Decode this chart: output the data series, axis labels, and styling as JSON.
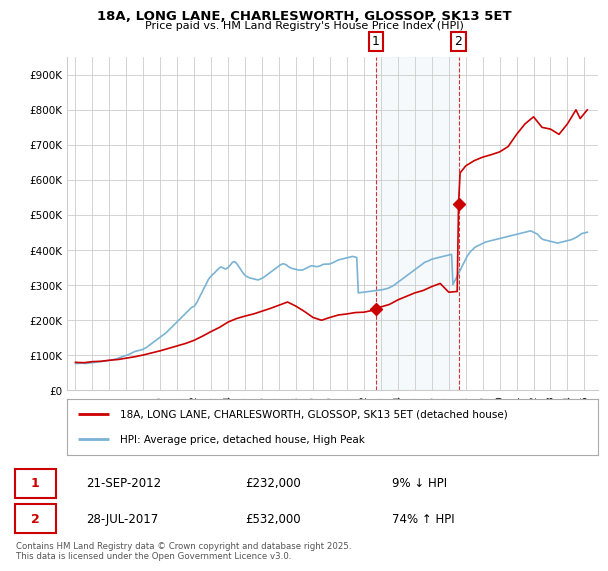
{
  "title": "18A, LONG LANE, CHARLESWORTH, GLOSSOP, SK13 5ET",
  "subtitle": "Price paid vs. HM Land Registry's House Price Index (HPI)",
  "background_color": "#ffffff",
  "plot_bg_color": "#ffffff",
  "grid_color": "#cccccc",
  "sale1_date": "21-SEP-2012",
  "sale1_price": 232000,
  "sale1_label": "9% ↓ HPI",
  "sale1_year": 2012.72,
  "sale2_date": "28-JUL-2017",
  "sale2_price": 532000,
  "sale2_label": "74% ↑ HPI",
  "sale2_year": 2017.58,
  "hpi_line_color": "#7ab3d4",
  "price_line_color": "#cc0000",
  "annotation_box_color": "#cc0000",
  "highlight_bg": "#d8e8f5",
  "legend_label1": "18A, LONG LANE, CHARLESWORTH, GLOSSOP, SK13 5ET (detached house)",
  "legend_label2": "HPI: Average price, detached house, High Peak",
  "footer": "Contains HM Land Registry data © Crown copyright and database right 2025.\nThis data is licensed under the Open Government Licence v3.0.",
  "ylim": [
    0,
    950000
  ],
  "yticks": [
    0,
    100000,
    200000,
    300000,
    400000,
    500000,
    600000,
    700000,
    800000,
    900000
  ],
  "ytick_labels": [
    "£0",
    "£100K",
    "£200K",
    "£300K",
    "£400K",
    "£500K",
    "£600K",
    "£700K",
    "£800K",
    "£900K"
  ],
  "xlim_start": 1994.5,
  "xlim_end": 2025.8,
  "hpi_years": [
    1995.0,
    1995.08,
    1995.17,
    1995.25,
    1995.33,
    1995.42,
    1995.5,
    1995.58,
    1995.67,
    1995.75,
    1995.83,
    1995.92,
    1996.0,
    1996.08,
    1996.17,
    1996.25,
    1996.33,
    1996.42,
    1996.5,
    1996.58,
    1996.67,
    1996.75,
    1996.83,
    1996.92,
    1997.0,
    1997.08,
    1997.17,
    1997.25,
    1997.33,
    1997.42,
    1997.5,
    1997.58,
    1997.67,
    1997.75,
    1997.83,
    1997.92,
    1998.0,
    1998.08,
    1998.17,
    1998.25,
    1998.33,
    1998.42,
    1998.5,
    1998.58,
    1998.67,
    1998.75,
    1998.83,
    1998.92,
    1999.0,
    1999.08,
    1999.17,
    1999.25,
    1999.33,
    1999.42,
    1999.5,
    1999.58,
    1999.67,
    1999.75,
    1999.83,
    1999.92,
    2000.0,
    2000.08,
    2000.17,
    2000.25,
    2000.33,
    2000.42,
    2000.5,
    2000.58,
    2000.67,
    2000.75,
    2000.83,
    2000.92,
    2001.0,
    2001.08,
    2001.17,
    2001.25,
    2001.33,
    2001.42,
    2001.5,
    2001.58,
    2001.67,
    2001.75,
    2001.83,
    2001.92,
    2002.0,
    2002.08,
    2002.17,
    2002.25,
    2002.33,
    2002.42,
    2002.5,
    2002.58,
    2002.67,
    2002.75,
    2002.83,
    2002.92,
    2003.0,
    2003.08,
    2003.17,
    2003.25,
    2003.33,
    2003.42,
    2003.5,
    2003.58,
    2003.67,
    2003.75,
    2003.83,
    2003.92,
    2004.0,
    2004.08,
    2004.17,
    2004.25,
    2004.33,
    2004.42,
    2004.5,
    2004.58,
    2004.67,
    2004.75,
    2004.83,
    2004.92,
    2005.0,
    2005.08,
    2005.17,
    2005.25,
    2005.33,
    2005.42,
    2005.5,
    2005.58,
    2005.67,
    2005.75,
    2005.83,
    2005.92,
    2006.0,
    2006.08,
    2006.17,
    2006.25,
    2006.33,
    2006.42,
    2006.5,
    2006.58,
    2006.67,
    2006.75,
    2006.83,
    2006.92,
    2007.0,
    2007.08,
    2007.17,
    2007.25,
    2007.33,
    2007.42,
    2007.5,
    2007.58,
    2007.67,
    2007.75,
    2007.83,
    2007.92,
    2008.0,
    2008.08,
    2008.17,
    2008.25,
    2008.33,
    2008.42,
    2008.5,
    2008.58,
    2008.67,
    2008.75,
    2008.83,
    2008.92,
    2009.0,
    2009.08,
    2009.17,
    2009.25,
    2009.33,
    2009.42,
    2009.5,
    2009.58,
    2009.67,
    2009.75,
    2009.83,
    2009.92,
    2010.0,
    2010.08,
    2010.17,
    2010.25,
    2010.33,
    2010.42,
    2010.5,
    2010.58,
    2010.67,
    2010.75,
    2010.83,
    2010.92,
    2011.0,
    2011.08,
    2011.17,
    2011.25,
    2011.33,
    2011.42,
    2011.5,
    2011.58,
    2011.67,
    2011.75,
    2011.83,
    2011.92,
    2012.0,
    2012.08,
    2012.17,
    2012.25,
    2012.33,
    2012.42,
    2012.5,
    2012.58,
    2012.67,
    2012.75,
    2012.83,
    2012.92,
    2013.0,
    2013.08,
    2013.17,
    2013.25,
    2013.33,
    2013.42,
    2013.5,
    2013.58,
    2013.67,
    2013.75,
    2013.83,
    2013.92,
    2014.0,
    2014.08,
    2014.17,
    2014.25,
    2014.33,
    2014.42,
    2014.5,
    2014.58,
    2014.67,
    2014.75,
    2014.83,
    2014.92,
    2015.0,
    2015.08,
    2015.17,
    2015.25,
    2015.33,
    2015.42,
    2015.5,
    2015.58,
    2015.67,
    2015.75,
    2015.83,
    2015.92,
    2016.0,
    2016.08,
    2016.17,
    2016.25,
    2016.33,
    2016.42,
    2016.5,
    2016.58,
    2016.67,
    2016.75,
    2016.83,
    2016.92,
    2017.0,
    2017.08,
    2017.17,
    2017.25,
    2017.33,
    2017.42,
    2017.5,
    2017.58,
    2017.67,
    2017.75,
    2017.83,
    2017.92,
    2018.0,
    2018.08,
    2018.17,
    2018.25,
    2018.33,
    2018.42,
    2018.5,
    2018.58,
    2018.67,
    2018.75,
    2018.83,
    2018.92,
    2019.0,
    2019.08,
    2019.17,
    2019.25,
    2019.33,
    2019.42,
    2019.5,
    2019.58,
    2019.67,
    2019.75,
    2019.83,
    2019.92,
    2020.0,
    2020.08,
    2020.17,
    2020.25,
    2020.33,
    2020.42,
    2020.5,
    2020.58,
    2020.67,
    2020.75,
    2020.83,
    2020.92,
    2021.0,
    2021.08,
    2021.17,
    2021.25,
    2021.33,
    2021.42,
    2021.5,
    2021.58,
    2021.67,
    2021.75,
    2021.83,
    2021.92,
    2022.0,
    2022.08,
    2022.17,
    2022.25,
    2022.33,
    2022.42,
    2022.5,
    2022.58,
    2022.67,
    2022.75,
    2022.83,
    2022.92,
    2023.0,
    2023.08,
    2023.17,
    2023.25,
    2023.33,
    2023.42,
    2023.5,
    2023.58,
    2023.67,
    2023.75,
    2023.83,
    2023.92,
    2024.0,
    2024.08,
    2024.17,
    2024.25,
    2024.33,
    2024.42,
    2024.5,
    2024.58,
    2024.67,
    2024.75,
    2024.83,
    2024.92,
    2025.0,
    2025.08,
    2025.17
  ],
  "hpi_values": [
    77000,
    76500,
    76800,
    77200,
    77500,
    77800,
    77200,
    76800,
    77000,
    77500,
    78000,
    78500,
    79000,
    79500,
    80000,
    80500,
    81000,
    81500,
    82000,
    82500,
    83000,
    83500,
    84000,
    84500,
    85000,
    86000,
    87000,
    88000,
    89000,
    90000,
    91500,
    93000,
    94500,
    96000,
    97500,
    99000,
    100000,
    101000,
    103000,
    105000,
    107000,
    109000,
    111000,
    112000,
    113000,
    114000,
    115000,
    116000,
    118000,
    120000,
    122000,
    125000,
    128000,
    131000,
    134000,
    137000,
    140000,
    143000,
    146000,
    149000,
    152000,
    155000,
    158000,
    161000,
    164000,
    168000,
    172000,
    176000,
    180000,
    184000,
    188000,
    192000,
    196000,
    200000,
    204000,
    208000,
    212000,
    216000,
    220000,
    224000,
    228000,
    232000,
    236000,
    238000,
    240000,
    245000,
    252000,
    260000,
    268000,
    276000,
    284000,
    292000,
    300000,
    308000,
    316000,
    322000,
    326000,
    330000,
    334000,
    338000,
    342000,
    346000,
    350000,
    352000,
    350000,
    348000,
    346000,
    348000,
    350000,
    355000,
    360000,
    365000,
    367000,
    366000,
    362000,
    356000,
    350000,
    344000,
    338000,
    332000,
    328000,
    325000,
    323000,
    321000,
    320000,
    319000,
    318000,
    317000,
    316000,
    315000,
    316000,
    318000,
    320000,
    322000,
    325000,
    328000,
    331000,
    334000,
    337000,
    340000,
    343000,
    346000,
    349000,
    352000,
    355000,
    358000,
    360000,
    361000,
    360000,
    358000,
    355000,
    352000,
    350000,
    348000,
    347000,
    346000,
    345000,
    344000,
    343000,
    343000,
    343000,
    344000,
    346000,
    348000,
    350000,
    352000,
    354000,
    355000,
    355000,
    354000,
    353000,
    353000,
    354000,
    355000,
    357000,
    359000,
    360000,
    360000,
    360000,
    360000,
    361000,
    362000,
    364000,
    366000,
    368000,
    370000,
    372000,
    373000,
    374000,
    375000,
    376000,
    377000,
    378000,
    379000,
    380000,
    381000,
    382000,
    381000,
    380000,
    379000,
    278000,
    278500,
    279000,
    279500,
    280000,
    280500,
    281000,
    281500,
    282000,
    282500,
    283000,
    283500,
    284000,
    284500,
    285000,
    285500,
    286000,
    287000,
    288000,
    289000,
    290000,
    291000,
    293000,
    295000,
    297000,
    299000,
    302000,
    305000,
    308000,
    311000,
    314000,
    317000,
    320000,
    323000,
    326000,
    329000,
    332000,
    335000,
    338000,
    341000,
    344000,
    347000,
    350000,
    353000,
    356000,
    359000,
    362000,
    365000,
    367000,
    368000,
    370000,
    372000,
    374000,
    375000,
    376000,
    377000,
    378000,
    379000,
    380000,
    381000,
    382000,
    383000,
    384000,
    385000,
    386000,
    387000,
    388000,
    302000,
    310000,
    318000,
    326000,
    334000,
    342000,
    350000,
    358000,
    366000,
    374000,
    382000,
    388000,
    394000,
    398000,
    402000,
    406000,
    409000,
    411000,
    413000,
    415000,
    417000,
    419000,
    421000,
    423000,
    424000,
    425000,
    426000,
    427000,
    428000,
    429000,
    430000,
    431000,
    432000,
    433000,
    434000,
    435000,
    436000,
    437000,
    438000,
    439000,
    440000,
    441000,
    442000,
    443000,
    444000,
    445000,
    446000,
    447000,
    448000,
    449000,
    450000,
    451000,
    452000,
    453000,
    454000,
    455000,
    453000,
    451000,
    449000,
    447000,
    445000,
    440000,
    435000,
    432000,
    430000,
    429000,
    428000,
    427000,
    426000,
    425000,
    424000,
    423000,
    422000,
    421000,
    420000,
    421000,
    422000,
    423000,
    424000,
    425000,
    426000,
    427000,
    428000,
    429000,
    430000,
    432000,
    434000,
    436000,
    438000,
    441000,
    444000,
    447000,
    448000,
    449000,
    450000,
    451000,
    452000,
    453000,
    454000,
    455000,
    456000,
    457000,
    458000,
    459000,
    460000,
    461000,
    462000,
    463000,
    464000,
    465000,
    466000,
    467000,
    468000,
    469000,
    470000
  ],
  "price_years_before": [
    1995.0,
    1995.5,
    1996.0,
    1996.5,
    1997.0,
    1997.5,
    1998.0,
    1998.5,
    1999.0,
    1999.5,
    2000.0,
    2000.5,
    2001.0,
    2001.5,
    2002.0,
    2002.5,
    2003.0,
    2003.5,
    2004.0,
    2004.5,
    2005.0,
    2005.5,
    2006.0,
    2006.5,
    2007.0,
    2007.5,
    2008.0,
    2008.5,
    2009.0,
    2009.5,
    2010.0,
    2010.5,
    2011.0,
    2011.5,
    2012.0,
    2012.5,
    2012.72
  ],
  "price_values_before": [
    80000,
    79000,
    82000,
    83000,
    86000,
    88000,
    92000,
    96000,
    101000,
    107000,
    113000,
    120000,
    127000,
    134000,
    143000,
    155000,
    168000,
    180000,
    195000,
    205000,
    212000,
    218000,
    226000,
    234000,
    243000,
    252000,
    240000,
    225000,
    208000,
    200000,
    208000,
    215000,
    218000,
    222000,
    223000,
    228000,
    232000
  ],
  "price_years_after": [
    2012.72,
    2013.0,
    2013.5,
    2014.0,
    2014.5,
    2015.0,
    2015.5,
    2016.0,
    2016.5,
    2017.0,
    2017.5,
    2017.58,
    2017.67,
    2018.0,
    2018.5,
    2019.0,
    2019.5,
    2020.0,
    2020.5,
    2021.0,
    2021.5,
    2022.0,
    2022.5,
    2023.0,
    2023.5,
    2024.0,
    2024.25,
    2024.5,
    2024.75,
    2025.0,
    2025.17
  ],
  "price_values_after": [
    232000,
    238000,
    245000,
    258000,
    268000,
    278000,
    285000,
    296000,
    305000,
    280000,
    282000,
    532000,
    620000,
    640000,
    655000,
    665000,
    672000,
    680000,
    695000,
    730000,
    760000,
    780000,
    750000,
    745000,
    730000,
    760000,
    780000,
    800000,
    775000,
    790000,
    800000
  ]
}
